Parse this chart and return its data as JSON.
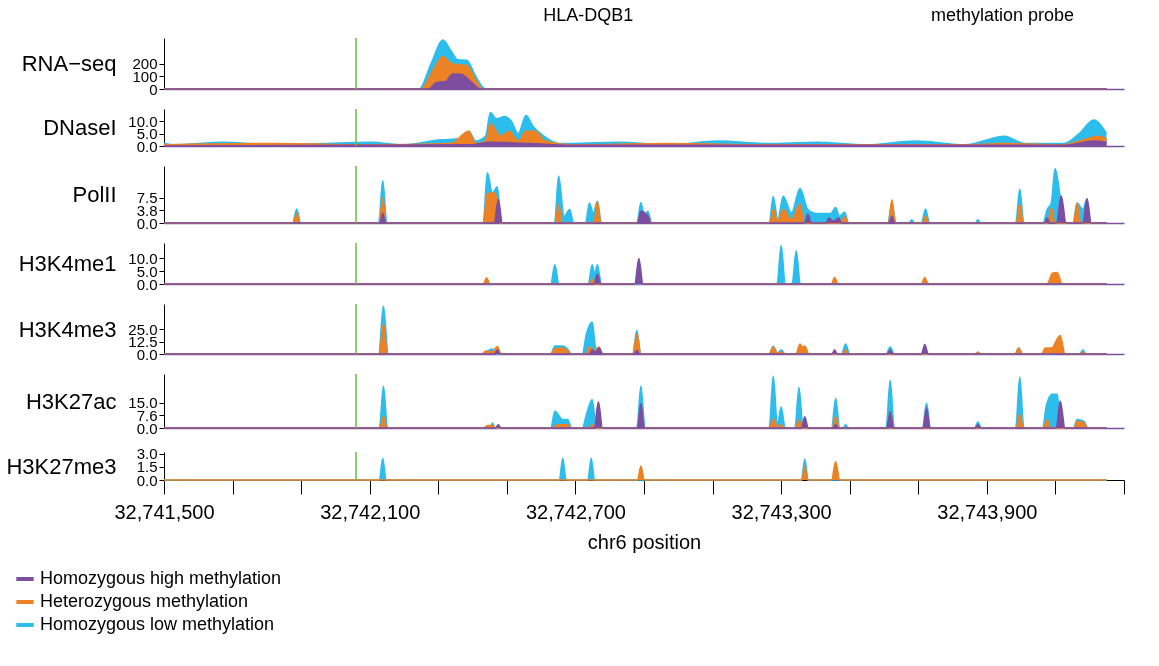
{
  "chart_data": [
    {
      "type": "area",
      "ylabel": "RNA−seq",
      "xlim": [
        32741500,
        32744300
      ],
      "ylim": [
        0,
        400
      ],
      "yticks": [
        0,
        100,
        200
      ],
      "tick_labels": "y",
      "legend": "bottom left",
      "annotations": [
        "HLA-DQB1",
        "methylation probe"
      ],
      "ref_lines": [
        {
          "axis": "x",
          "value": 32742060,
          "color": "#6abf3a"
        }
      ],
      "series": [
        {
          "name": "Homozygous high methylation",
          "color": "#7d4e9f",
          "x": [
            32741500,
            32742273,
            32742293,
            32742322,
            32742342,
            32742366,
            32742394,
            32742423,
            32744250
          ],
          "values": [
            0,
            0,
            49,
            60,
            118,
            115,
            60,
            0,
            0
          ]
        },
        {
          "name": "Heterozygous methylation",
          "color": "#ec8224",
          "x": [
            32741500,
            32742250,
            32742285,
            32742314,
            32742337,
            32742357,
            32742383,
            32742409,
            32742429,
            32744250
          ],
          "values": [
            0,
            0,
            150,
            255,
            200,
            190,
            185,
            70,
            0,
            0
          ]
        },
        {
          "name": "Homozygous low methylation",
          "color": "#2dbdec",
          "x": [
            32741500,
            32742244,
            32742279,
            32742314,
            32742337,
            32742357,
            32742383,
            32742409,
            32742438,
            32744250
          ],
          "values": [
            0,
            0,
            200,
            385,
            300,
            229,
            225,
            100,
            0,
            0
          ]
        }
      ]
    },
    {
      "type": "area",
      "ylabel": "DNaseI",
      "xlim": [
        32741500,
        32744300
      ],
      "ylim": [
        0,
        15
      ],
      "yticks": [
        {
          "value": 0,
          "label": "0.0"
        },
        {
          "value": 5,
          "label": "5.0"
        },
        {
          "value": 10,
          "label": "10.0"
        }
      ],
      "tick_labels": "y",
      "ref_lines": [
        {
          "axis": "x",
          "value": 32742060,
          "color": "#6abf3a"
        }
      ],
      "series": [
        {
          "name": "Homozygous high methylation",
          "color": "#7d4e9f",
          "x": [
            32741500,
            32742394,
            32742452,
            32742567,
            32742683,
            32744125,
            32744212,
            32744249
          ],
          "values": [
            0,
            0.5,
            1.5,
            1,
            0.3,
            0.3,
            2,
            1.5
          ]
        },
        {
          "name": "Heterozygous methylation",
          "color": "#ec8224",
          "x": [
            32741500,
            32741817,
            32742106,
            32742337,
            32742389,
            32742409,
            32742438,
            32742452,
            32742481,
            32742507,
            32742533,
            32742556,
            32742582,
            32742611,
            32742683,
            32742971,
            32743260,
            32743548,
            32743837,
            32743952,
            32744125,
            32744183,
            32744226,
            32744249
          ],
          "values": [
            0.5,
            1,
            0.5,
            1,
            6,
            1,
            2,
            9,
            4,
            6,
            2,
            6,
            6,
            2,
            0.5,
            1,
            0.5,
            0.5,
            0.5,
            1,
            0.5,
            2.5,
            4,
            3
          ]
        },
        {
          "name": "Homozygous low methylation",
          "color": "#2dbdec",
          "x": [
            32741500,
            32741529,
            32741673,
            32741817,
            32741962,
            32742106,
            32742192,
            32742308,
            32742366,
            32742389,
            32742409,
            32742438,
            32742452,
            32742469,
            32742495,
            32742513,
            32742533,
            32742556,
            32742576,
            32742608,
            32742654,
            32742827,
            32742971,
            32743116,
            32743260,
            32743404,
            32743548,
            32743693,
            32743837,
            32743952,
            32744010,
            32744125,
            32744169,
            32744212,
            32744249
          ],
          "values": [
            1,
            0.5,
            1.5,
            0.5,
            1,
            1.5,
            0.5,
            2.5,
            3,
            6,
            2,
            4,
            13.6,
            11,
            12,
            10,
            5,
            12.4,
            8,
            4,
            1,
            1.5,
            0.5,
            2,
            1,
            1.5,
            0.5,
            2,
            0.5,
            4,
            1,
            1,
            5,
            10.5,
            5
          ]
        }
      ]
    },
    {
      "type": "area",
      "ylabel": "PolII",
      "xlim": [
        32741500,
        32744300
      ],
      "ylim": [
        0,
        17
      ],
      "yticks": [
        {
          "value": 0,
          "label": "0.0"
        },
        3.8,
        7.5
      ],
      "tick_labels": "y",
      "ref_lines": [
        {
          "axis": "x",
          "value": 32742060,
          "color": "#6abf3a"
        }
      ],
      "series": [
        {
          "name": "Homozygous high methylation",
          "color": "#7d4e9f",
          "x": [
            32741500,
            32742130,
            32742138,
            32742146,
            32742463,
            32742475,
            32742487,
            32742881,
            32742891,
            32742911,
            32742921,
            32743368,
            32743378,
            32743388,
            32743431,
            32743439,
            32743453,
            32743468,
            32743476,
            32743615,
            32743623,
            32743631,
            32744068,
            32744076,
            32744084,
            32744103,
            32744117,
            32744131,
            32744180,
            32744192,
            32744204,
            32744250
          ],
          "values": [
            0,
            0,
            3,
            0,
            0,
            7,
            0,
            0,
            3.5,
            2,
            0,
            0,
            2.6,
            0,
            0,
            1.5,
            0.5,
            1.5,
            0,
            0,
            2,
            0,
            0,
            1.5,
            0,
            0,
            8.1,
            0,
            0,
            7.2,
            0,
            0
          ]
        },
        {
          "name": "Heterozygous methylation",
          "color": "#ec8224",
          "x": [
            32741500,
            32741877,
            32741887,
            32741897,
            32742128,
            32742138,
            32742148,
            32742431,
            32742443,
            32742466,
            32742480,
            32742641,
            32742651,
            32742661,
            32742754,
            32742764,
            32742774,
            32742881,
            32742891,
            32742911,
            32742921,
            32743267,
            32743277,
            32743290,
            32743306,
            32743330,
            32743355,
            32743367,
            32743475,
            32743485,
            32743495,
            32743613,
            32743623,
            32743633,
            32743711,
            32743721,
            32743731,
            32743986,
            32743996,
            32744006,
            32744078,
            32744088,
            32744098,
            32744153,
            32744163,
            32744173,
            32744250
          ],
          "values": [
            0,
            0,
            3,
            0,
            0,
            7.5,
            0,
            0,
            8.8,
            9,
            0,
            0,
            5.5,
            0,
            0,
            6.5,
            0,
            0,
            2,
            2,
            0,
            0,
            4,
            0.5,
            4,
            1,
            5.6,
            0,
            0,
            2,
            0,
            0,
            6.9,
            0,
            0,
            2,
            0,
            0,
            5.6,
            0,
            0,
            4.5,
            0,
            0,
            6,
            0,
            0
          ]
        },
        {
          "name": "Homozygous low methylation",
          "color": "#2dbdec",
          "x": [
            32741500,
            32741875,
            32741887,
            32741899,
            32742126,
            32742138,
            32742150,
            32742431,
            32742443,
            32742458,
            32742472,
            32742484,
            32742639,
            32742651,
            32742667,
            32742683,
            32742695,
            32742729,
            32742741,
            32742752,
            32742764,
            32742776,
            32742879,
            32742891,
            32742901,
            32742911,
            32742923,
            32743265,
            32743277,
            32743290,
            32743306,
            32743330,
            32743355,
            32743378,
            32743404,
            32743427,
            32743444,
            32743459,
            32743470,
            32743485,
            32743497,
            32743611,
            32743623,
            32743635,
            32743673,
            32743681,
            32743689,
            32743709,
            32743721,
            32743733,
            32743866,
            32743874,
            32743882,
            32743984,
            32743996,
            32744008,
            32744064,
            32744076,
            32744088,
            32744099,
            32744117,
            32744130,
            32744151,
            32744163,
            32744180,
            32744192,
            32744204,
            32744250
          ],
          "values": [
            0,
            0,
            4.2,
            0,
            0,
            12.6,
            0,
            0,
            15,
            9,
            10.8,
            0,
            0,
            14,
            2,
            4,
            0,
            0,
            6,
            3,
            6.5,
            0,
            0,
            6.1,
            2,
            3.5,
            0,
            0,
            7.9,
            1,
            8,
            3,
            10.3,
            4,
            2.8,
            2.8,
            2.8,
            4.6,
            2,
            3.2,
            0,
            0,
            6,
            0,
            0,
            1,
            0,
            0,
            4.2,
            0,
            0,
            1,
            0,
            0,
            10.1,
            0,
            0,
            4,
            6,
            16.2,
            6,
            0,
            0,
            6,
            4,
            7.2,
            0,
            0
          ]
        }
      ]
    },
    {
      "type": "area",
      "ylabel": "H3K4me1",
      "xlim": [
        32741500,
        32744300
      ],
      "ylim": [
        0,
        16
      ],
      "yticks": [
        {
          "value": 0,
          "label": "0.0"
        },
        {
          "value": 5,
          "label": "5.0"
        },
        {
          "value": 10,
          "label": "10.0"
        }
      ],
      "tick_labels": "y",
      "ref_lines": [
        {
          "axis": "x",
          "value": 32742060,
          "color": "#6abf3a"
        }
      ],
      "series": [
        {
          "name": "Homozygous high methylation",
          "color": "#7d4e9f",
          "x": [
            32741500,
            32742754,
            32742764,
            32742774,
            32742873,
            32742885,
            32742897,
            32744250
          ],
          "values": [
            0,
            0,
            3.8,
            0,
            0,
            10,
            0,
            0
          ]
        },
        {
          "name": "Heterozygous methylation",
          "color": "#ec8224",
          "x": [
            32741500,
            32742431,
            32742441,
            32742451,
            32742741,
            32742749,
            32742757,
            32742875,
            32742885,
            32742895,
            32743446,
            32743456,
            32743466,
            32743709,
            32743719,
            32743729,
            32744076,
            32744091,
            32744105,
            32744120,
            32744250
          ],
          "values": [
            0,
            0,
            2.4,
            0,
            0,
            2,
            0,
            0,
            3,
            0,
            0,
            2.5,
            0,
            0,
            2.5,
            0,
            0,
            4.2,
            4.5,
            0,
            0
          ]
        },
        {
          "name": "Homozygous low methylation",
          "color": "#2dbdec",
          "x": [
            32741500,
            32742628,
            32742640,
            32742652,
            32742737,
            32742749,
            32742756,
            32742764,
            32742776,
            32743288,
            32743300,
            32743312,
            32743332,
            32743344,
            32743356,
            32744250
          ],
          "values": [
            0,
            0,
            7.5,
            0,
            0,
            7.5,
            4,
            7.5,
            0,
            0,
            15,
            0,
            0,
            13,
            0,
            0
          ]
        }
      ]
    },
    {
      "type": "area",
      "ylabel": "H3K4me3",
      "xlim": [
        32741500,
        32744300
      ],
      "ylim": [
        0,
        50
      ],
      "yticks": [
        {
          "value": 0,
          "label": "0.0"
        },
        12.5,
        {
          "value": 25,
          "label": "25.0"
        }
      ],
      "tick_labels": "y",
      "ref_lines": [
        {
          "axis": "x",
          "value": 32742060,
          "color": "#6abf3a"
        }
      ],
      "series": [
        {
          "name": "Homozygous high methylation",
          "color": "#7d4e9f",
          "x": [
            32741500,
            32742464,
            32742472,
            32742480,
            32742741,
            32742749,
            32742759,
            32742769,
            32742779,
            32742871,
            32742879,
            32742887,
            32743448,
            32743456,
            32743464,
            32743610,
            32743618,
            32743626,
            32743709,
            32743719,
            32743729,
            32744250
          ],
          "values": [
            0,
            0,
            4,
            0,
            0,
            4,
            2,
            6,
            0,
            0,
            3.5,
            0,
            0,
            4,
            0,
            0,
            4,
            0,
            0,
            9.5,
            0,
            0
          ]
        },
        {
          "name": "Heterozygous methylation",
          "color": "#ec8224",
          "x": [
            32741500,
            32742128,
            32742140,
            32742152,
            32742428,
            32742438,
            32742458,
            32742472,
            32742484,
            32742628,
            32742640,
            32742663,
            32742677,
            32742689,
            32742731,
            32742741,
            32742755,
            32742769,
            32742779,
            32742867,
            32742879,
            32742891,
            32743265,
            32743277,
            32743290,
            32743300,
            32743310,
            32743343,
            32743355,
            32743362,
            32743369,
            32743381,
            32743478,
            32743488,
            32743498,
            32743866,
            32743874,
            32743882,
            32743983,
            32743993,
            32744003,
            32744060,
            32744070,
            32744088,
            32744114,
            32744128,
            32744172,
            32744180,
            32744188,
            32744250
          ],
          "values": [
            0,
            0,
            30,
            0,
            0,
            3,
            2,
            7.5,
            0,
            0,
            5,
            6,
            3,
            0,
            0,
            7,
            3,
            7,
            0,
            0,
            19.6,
            0,
            0,
            7,
            0.5,
            2,
            0,
            0,
            10,
            7,
            8,
            0,
            0,
            4,
            0,
            0,
            2,
            0,
            0,
            6,
            0,
            0,
            6,
            6,
            18.6,
            0,
            0,
            2,
            0,
            0
          ]
        },
        {
          "name": "Homozygous low methylation",
          "color": "#2dbdec",
          "x": [
            32741500,
            32742126,
            32742140,
            32742154,
            32742428,
            32742438,
            32742458,
            32742470,
            32742628,
            32742640,
            32742663,
            32742677,
            32742689,
            32742720,
            32742732,
            32742749,
            32742760,
            32742769,
            32742781,
            32742867,
            32742879,
            32742891,
            32743265,
            32743277,
            32743289,
            32743300,
            32743312,
            32743476,
            32743488,
            32743500,
            32743606,
            32743618,
            32743630,
            32743981,
            32743993,
            32744005,
            32744102,
            32744114,
            32744126,
            32744170,
            32744180,
            32744190,
            32744250
          ],
          "values": [
            0,
            0,
            48,
            0,
            0,
            2,
            5,
            0,
            0,
            8,
            8,
            5,
            0,
            0,
            20,
            32,
            5,
            6,
            0,
            0,
            23.6,
            0,
            0,
            7.8,
            1,
            4,
            0,
            0,
            10,
            0,
            0,
            7,
            0,
            0,
            6,
            0,
            0,
            14,
            0,
            0,
            4,
            0,
            0
          ]
        }
      ]
    },
    {
      "type": "area",
      "ylabel": "H3K27ac",
      "xlim": [
        32741500,
        32744300
      ],
      "ylim": [
        0,
        32
      ],
      "yticks": [
        {
          "value": 0,
          "label": "0.0"
        },
        7.6,
        {
          "value": 15,
          "label": "15.0"
        }
      ],
      "tick_labels": "y",
      "ref_lines": [
        {
          "axis": "x",
          "value": 32742060,
          "color": "#6abf3a"
        }
      ],
      "series": [
        {
          "name": "Homozygous high methylation",
          "color": "#7d4e9f",
          "x": [
            32741500,
            32742467,
            32742475,
            32742483,
            32742755,
            32742767,
            32742779,
            32742881,
            32742891,
            32742901,
            32743359,
            32743369,
            32743379,
            32743451,
            32743459,
            32743467,
            32743608,
            32743618,
            32743628,
            32743714,
            32743724,
            32743734,
            32743866,
            32743874,
            32743882,
            32744102,
            32744114,
            32744128,
            32744250
          ],
          "values": [
            0,
            0,
            2,
            0,
            0,
            15.6,
            0,
            0,
            14.5,
            0,
            0,
            6.6,
            0,
            0,
            2,
            0,
            0,
            9.6,
            0,
            0,
            11.8,
            0,
            0,
            2,
            0,
            0,
            16,
            0,
            0
          ]
        },
        {
          "name": "Heterozygous methylation",
          "color": "#ec8224",
          "x": [
            32741500,
            32742130,
            32742140,
            32742150,
            32742430,
            32742445,
            32742458,
            32742466,
            32742630,
            32742650,
            32742677,
            32742687,
            32742739,
            32742749,
            32742759,
            32742881,
            32742891,
            32742901,
            32743267,
            32743277,
            32743290,
            32743300,
            32743310,
            32743342,
            32743352,
            32743362,
            32743449,
            32743459,
            32743469,
            32743986,
            32743996,
            32744006,
            32744066,
            32744076,
            32744086,
            32744155,
            32744163,
            32744183,
            32744193,
            32744250
          ],
          "values": [
            0,
            0,
            6.8,
            0,
            0,
            1.5,
            1.5,
            0,
            0,
            2,
            2,
            0,
            0,
            2,
            0,
            0,
            8,
            0,
            0,
            5.3,
            0.5,
            2,
            0,
            0,
            4.8,
            0,
            0,
            6.6,
            0,
            0,
            8.2,
            0,
            0,
            5,
            0,
            0,
            4,
            3,
            0,
            0
          ]
        },
        {
          "name": "Homozygous low methylation",
          "color": "#2dbdec",
          "x": [
            32741500,
            32742128,
            32742140,
            32742152,
            32742450,
            32742458,
            32742466,
            32742628,
            32742640,
            32742663,
            32742677,
            32742689,
            32742720,
            32742732,
            32742749,
            32742761,
            32742879,
            32742891,
            32742903,
            32743265,
            32743277,
            32743289,
            32743300,
            32743312,
            32743340,
            32743352,
            32743364,
            32743447,
            32743459,
            32743471,
            32743480,
            32743488,
            32743496,
            32743606,
            32743618,
            32743630,
            32743712,
            32743724,
            32743736,
            32743864,
            32743874,
            32743884,
            32743984,
            32743996,
            32744008,
            32744063,
            32744073,
            32744091,
            32744105,
            32744117,
            32744153,
            32744163,
            32744183,
            32744195,
            32744250
          ],
          "values": [
            0,
            0,
            24.7,
            0,
            0,
            3,
            0,
            0,
            10,
            5,
            5,
            0,
            0,
            8,
            16.9,
            0,
            0,
            24.7,
            0,
            0,
            30.8,
            2,
            12.4,
            0,
            0,
            24,
            0,
            0,
            17.6,
            0,
            0,
            2,
            0,
            0,
            28.2,
            0,
            0,
            14.7,
            0,
            0,
            3.5,
            0,
            0,
            30.2,
            0,
            0,
            13,
            20,
            20,
            0,
            0,
            5,
            4,
            0,
            0
          ]
        }
      ]
    },
    {
      "type": "area",
      "ylabel": "H3K27me3",
      "xlabel": "chr6 position",
      "xlim": [
        32741500,
        32744300
      ],
      "ylim": [
        0,
        3.2
      ],
      "yticks": [
        {
          "value": 0,
          "label": "0.0"
        },
        1.5,
        {
          "value": 3,
          "label": "3.0"
        }
      ],
      "xticks": [
        {
          "value": 32741500,
          "label": "32,741,500"
        },
        {
          "value": 32741700,
          "label": null
        },
        {
          "value": 32741900,
          "label": null
        },
        {
          "value": 32742100,
          "label": "32,742,100"
        },
        {
          "value": 32742300,
          "label": null
        },
        {
          "value": 32742500,
          "label": null
        },
        {
          "value": 32742700,
          "label": "32,742,700"
        },
        {
          "value": 32742900,
          "label": null
        },
        {
          "value": 32743100,
          "label": null
        },
        {
          "value": 32743300,
          "label": "32,743,300"
        },
        {
          "value": 32743500,
          "label": null
        },
        {
          "value": 32743700,
          "label": null
        },
        {
          "value": 32743900,
          "label": "32,743,900"
        },
        {
          "value": 32744100,
          "label": null
        },
        {
          "value": 32744300,
          "label": null
        }
      ],
      "ref_lines": [
        {
          "axis": "x",
          "value": 32742060,
          "color": "#6abf3a"
        }
      ],
      "series": [
        {
          "name": "Heterozygous methylation",
          "color": "#ec8224",
          "x": [
            32741500,
            32742881,
            32742891,
            32742901,
            32743361,
            32743369,
            32743377,
            32743447,
            32743459,
            32743471,
            32744250
          ],
          "values": [
            0,
            0,
            1.6,
            0,
            0,
            1.6,
            0,
            0,
            2.1,
            0,
            0
          ]
        },
        {
          "name": "Homozygous low methylation",
          "color": "#2dbdec",
          "x": [
            32741500,
            32742128,
            32742138,
            32742148,
            32742653,
            32742663,
            32742673,
            32742736,
            32742746,
            32742756,
            32743359,
            32743369,
            32743379,
            32744250
          ],
          "values": [
            0,
            0,
            2.5,
            0,
            0,
            2.5,
            0,
            0,
            2.5,
            0,
            0,
            2.4,
            0,
            0
          ]
        }
      ]
    }
  ]
}
